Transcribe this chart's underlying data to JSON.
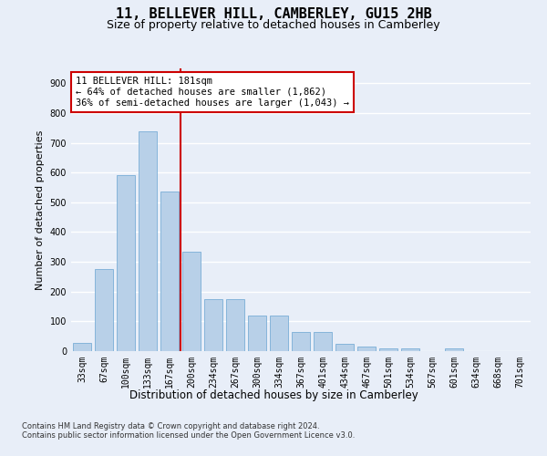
{
  "title": "11, BELLEVER HILL, CAMBERLEY, GU15 2HB",
  "subtitle": "Size of property relative to detached houses in Camberley",
  "xlabel": "Distribution of detached houses by size in Camberley",
  "ylabel": "Number of detached properties",
  "categories": [
    "33sqm",
    "67sqm",
    "100sqm",
    "133sqm",
    "167sqm",
    "200sqm",
    "234sqm",
    "267sqm",
    "300sqm",
    "334sqm",
    "367sqm",
    "401sqm",
    "434sqm",
    "467sqm",
    "501sqm",
    "534sqm",
    "567sqm",
    "601sqm",
    "634sqm",
    "668sqm",
    "701sqm"
  ],
  "values": [
    27,
    275,
    590,
    740,
    535,
    335,
    175,
    175,
    120,
    120,
    65,
    65,
    25,
    15,
    10,
    8,
    0,
    10,
    0,
    0,
    0
  ],
  "bar_color": "#b8d0e8",
  "bar_edge_color": "#7aaed6",
  "vline_color": "#cc0000",
  "annotation_text": "11 BELLEVER HILL: 181sqm\n← 64% of detached houses are smaller (1,862)\n36% of semi-detached houses are larger (1,043) →",
  "annotation_box_color": "#ffffff",
  "annotation_box_edge": "#cc0000",
  "ylim": [
    0,
    950
  ],
  "yticks": [
    0,
    100,
    200,
    300,
    400,
    500,
    600,
    700,
    800,
    900
  ],
  "footer": "Contains HM Land Registry data © Crown copyright and database right 2024.\nContains public sector information licensed under the Open Government Licence v3.0.",
  "bg_color": "#e8eef8",
  "plot_bg_color": "#e8eef8",
  "grid_color": "#ffffff",
  "title_fontsize": 11,
  "subtitle_fontsize": 9,
  "tick_fontsize": 7,
  "ylabel_fontsize": 8,
  "xlabel_fontsize": 8.5,
  "footer_fontsize": 6,
  "annotation_fontsize": 7.5
}
